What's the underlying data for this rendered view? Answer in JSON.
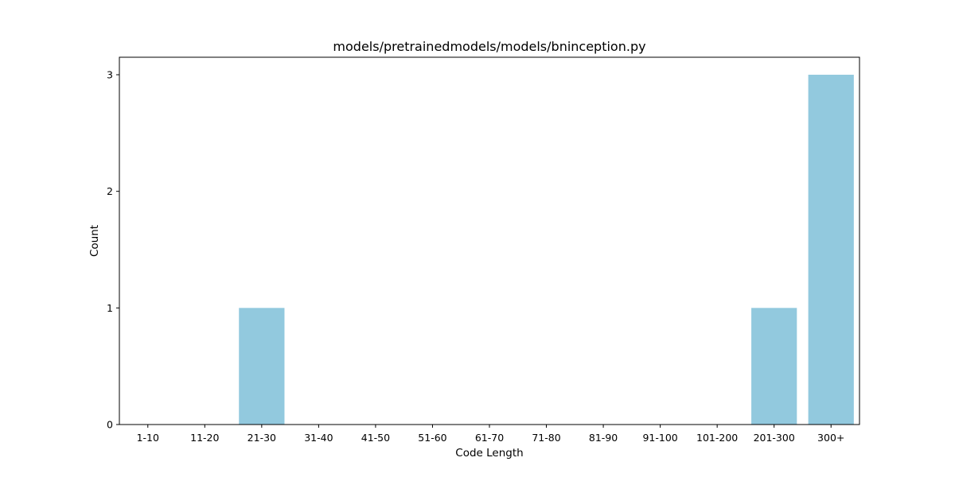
{
  "chart_data": {
    "type": "bar",
    "title": "models/pretrainedmodels/models/bninception.py",
    "xlabel": "Code Length",
    "ylabel": "Count",
    "categories": [
      "1-10",
      "11-20",
      "21-30",
      "31-40",
      "41-50",
      "51-60",
      "61-70",
      "71-80",
      "81-90",
      "91-100",
      "101-200",
      "201-300",
      "300+"
    ],
    "values": [
      0,
      0,
      1,
      0,
      0,
      0,
      0,
      0,
      0,
      0,
      0,
      1,
      3
    ],
    "ylim": [
      0,
      3.15
    ],
    "yticks": [
      "0",
      "1",
      "2",
      "3"
    ],
    "grid": false,
    "bar_color": "#92c9de"
  }
}
